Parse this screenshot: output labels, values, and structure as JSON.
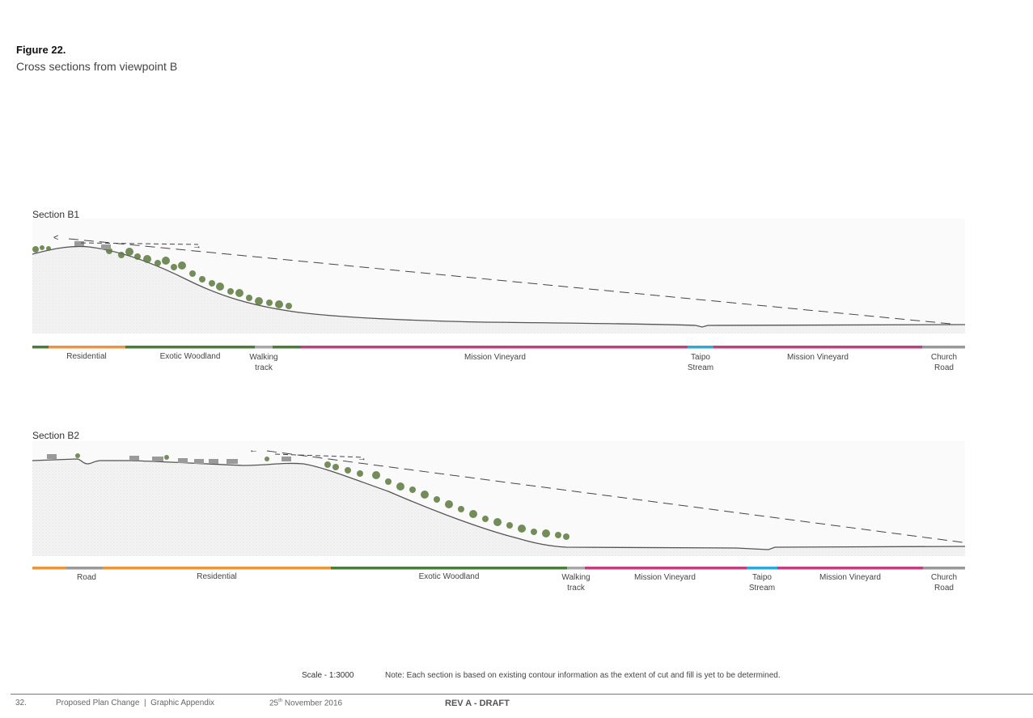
{
  "figure": {
    "label": "Figure 22.",
    "caption": "Cross sections from viewpoint B"
  },
  "sections": [
    {
      "title": "Section B1",
      "landuse": [
        {
          "label": "Residential"
        },
        {
          "label": "Exotic Woodland"
        },
        {
          "label": "Walking\ntrack"
        },
        {
          "label": "Mission Vineyard"
        },
        {
          "label": "Taipo\nStream"
        },
        {
          "label": "Mission Vineyard"
        },
        {
          "label": "Church\nRoad"
        }
      ]
    },
    {
      "title": "Section B2",
      "landuse": [
        {
          "label": "Road"
        },
        {
          "label": "Residential"
        },
        {
          "label": "Exotic Woodland"
        },
        {
          "label": "Walking\ntrack"
        },
        {
          "label": "Mission Vineyard"
        },
        {
          "label": "Taipo\nStream"
        },
        {
          "label": "Mission Vineyard"
        },
        {
          "label": "Church\nRoad"
        }
      ]
    }
  ],
  "colors": {
    "residential": "#e8953c",
    "woodland": "#4a7d3a",
    "track": "#a8a8a8",
    "vineyard": "#c0407f",
    "stream": "#2fa8d8",
    "road": "#999999"
  },
  "scale": "Scale - 1:3000",
  "note": "Note: Each section is based on existing contour information as the extent of cut and fill is yet to be determined.",
  "footer": {
    "page": "32.",
    "doc": "Proposed Plan Change  |  Graphic Appendix",
    "date_day": "25",
    "date_suffix": "th",
    "date_rest": " November 2016",
    "rev": "REV A - DRAFT"
  }
}
